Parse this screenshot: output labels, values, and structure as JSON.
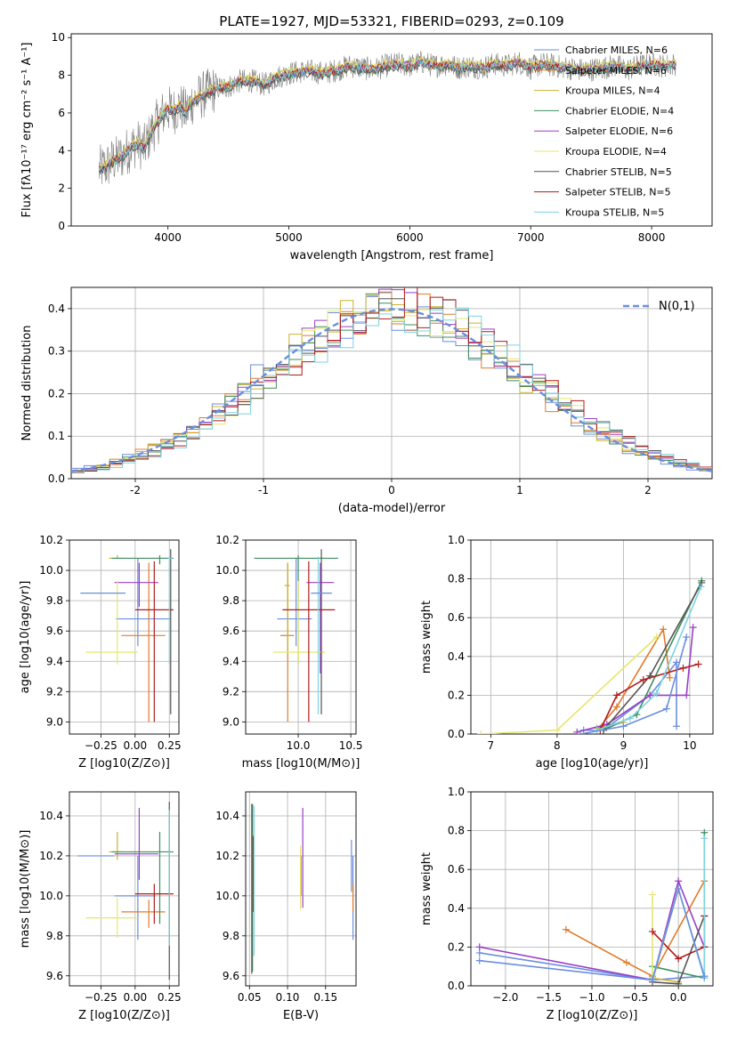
{
  "figure_title": "PLATE=1927, MJD=53321, FIBERID=0293, z=0.109",
  "series_colors": [
    "#6b8ede",
    "#e07b2a",
    "#cbb230",
    "#3f8e5f",
    "#9a3fc8",
    "#e6e66e",
    "#555555",
    "#b01c1c",
    "#7ed3e0"
  ],
  "chart_data": [
    {
      "id": "spectrum",
      "type": "line",
      "title": "PLATE=1927, MJD=53321, FIBERID=0293, z=0.109",
      "xlabel": "wavelength [Angstrom, rest frame]",
      "ylabel": "Flux [fλ10⁻¹⁷ erg cm⁻² s⁻¹ A⁻¹]",
      "xlim": [
        3200,
        8500
      ],
      "ylim": [
        0,
        10.2
      ],
      "xticks": [
        4000,
        5000,
        6000,
        7000,
        8000
      ],
      "yticks": [
        0,
        2,
        4,
        6,
        8,
        10
      ],
      "grid": false,
      "legend_position": "top-right",
      "data_line": {
        "x": [
          3430,
          3500,
          3550,
          3600,
          3650,
          3700,
          3750,
          3800,
          3850,
          3900,
          3950,
          4000,
          4050,
          4100,
          4150,
          4200,
          4300,
          4400,
          4500,
          4600,
          4700,
          4800,
          4900,
          5000,
          5100,
          5200,
          5300,
          5400,
          5500,
          5600,
          5700,
          5800,
          5900,
          6000,
          6100,
          6200,
          6300,
          6400,
          6500,
          6600,
          6700,
          6800,
          6900,
          7000,
          7100,
          7200,
          7300,
          7400,
          7500,
          7600,
          7700,
          7800,
          7900,
          8000,
          8100,
          8200
        ],
        "y": [
          3.0,
          3.2,
          3.5,
          3.6,
          3.9,
          4.2,
          4.4,
          4.1,
          4.8,
          5.4,
          5.9,
          6.2,
          6.1,
          6.4,
          6.0,
          6.6,
          7.0,
          7.3,
          7.4,
          7.7,
          7.7,
          7.5,
          7.9,
          8.1,
          8.2,
          8.2,
          8.1,
          8.3,
          8.5,
          8.4,
          8.3,
          8.5,
          8.6,
          8.5,
          8.7,
          8.5,
          8.6,
          8.4,
          8.5,
          8.4,
          8.6,
          8.5,
          8.7,
          8.4,
          8.6,
          8.5,
          8.4,
          8.3,
          8.3,
          8.4,
          8.5,
          8.3,
          8.5,
          8.6,
          8.5,
          8.6
        ]
      },
      "series": [
        {
          "name": "Chabrier MILES, N_SSP=6",
          "offset": 0.05
        },
        {
          "name": "Salpeter MILES, N_SSP=6",
          "offset": -0.05
        },
        {
          "name": "Kroupa MILES, N_SSP=4",
          "offset": 0.1
        },
        {
          "name": "Chabrier ELODIE, N_SSP=4",
          "offset": -0.1
        },
        {
          "name": "Salpeter ELODIE, N_SSP=6",
          "offset": 0.0
        },
        {
          "name": "Kroupa ELODIE, N_SSP=4",
          "offset": 0.15
        },
        {
          "name": "Chabrier STELIB, N_SSP=5",
          "offset": -0.15
        },
        {
          "name": "Salpeter STELIB, N_SSP=5",
          "offset": 0.02
        },
        {
          "name": "Kroupa STELIB, N_SSP=5",
          "offset": -0.02
        }
      ]
    },
    {
      "id": "residuals",
      "type": "histogram",
      "xlabel": "(data-model)/error",
      "ylabel": "Normed distribution",
      "xlim": [
        -2.5,
        2.5
      ],
      "ylim": [
        0,
        0.45
      ],
      "xticks": [
        -2,
        -1,
        0,
        1,
        2
      ],
      "yticks": [
        0.0,
        0.1,
        0.2,
        0.3,
        0.4
      ],
      "grid": true,
      "legend_position": "top-right",
      "reference_curve": {
        "name": "N(0,1)",
        "mean": 0,
        "sigma": 1
      },
      "bin_width": 0.1
    },
    {
      "id": "age_vs_Z",
      "type": "errorbar",
      "xlabel": "Z [log10(Z/Z⊙)]",
      "ylabel": "age  [log10(age/yr)]",
      "xlim": [
        -0.48,
        0.32
      ],
      "ylim": [
        8.92,
        10.2
      ],
      "xticks": [
        -0.25,
        0.0,
        0.25
      ],
      "xtick_labels": [
        "−0.25",
        "0.00",
        "0.25"
      ],
      "yticks": [
        9.0,
        9.2,
        9.4,
        9.6,
        9.8,
        10.0,
        10.2
      ],
      "grid": true,
      "points": [
        {
          "x": 0.02,
          "xerr": [
            0.16,
            0.24
          ],
          "y": 9.68,
          "yerr": [
            0.18,
            0.4
          ]
        },
        {
          "x": 0.1,
          "xerr": [
            0.2,
            0.12
          ],
          "y": 9.57,
          "yerr": [
            0.57,
            0.48
          ]
        },
        {
          "x": -0.13,
          "xerr": [
            0.06,
            0.05
          ],
          "y": 10.08,
          "yerr": [
            0.0,
            0.02
          ]
        },
        {
          "x": 0.18,
          "xerr": [
            0.35,
            0.1
          ],
          "y": 10.08,
          "yerr": [
            0.04,
            0.02
          ]
        },
        {
          "x": 0.03,
          "xerr": [
            0.18,
            0.14
          ],
          "y": 9.92,
          "yerr": [
            0.16,
            0.13
          ]
        },
        {
          "x": -0.13,
          "xerr": [
            0.23,
            0.15
          ],
          "y": 9.46,
          "yerr": [
            0.08,
            0.47
          ]
        },
        {
          "x": 0.26,
          "xerr": [
            0.01,
            0.01
          ],
          "y": 10.08,
          "yerr": [
            1.03,
            0.06
          ]
        },
        {
          "x": 0.14,
          "xerr": [
            0.14,
            0.14
          ],
          "y": 9.74,
          "yerr": [
            0.74,
            0.32
          ]
        },
        {
          "x": 0.25,
          "xerr": [
            0.01,
            0.02
          ],
          "y": 10.08,
          "yerr": [
            0.7,
            0.01
          ]
        },
        {
          "x": -0.27,
          "xerr": [
            0.13,
            0.2
          ],
          "y": 9.85,
          "yerr": [
            0.0,
            0.0
          ]
        }
      ]
    },
    {
      "id": "age_vs_mass",
      "type": "errorbar",
      "xlabel": "mass [log10(M/M⊙)]",
      "xlim": [
        9.5,
        10.55
      ],
      "ylim": [
        8.92,
        10.2
      ],
      "xticks": [
        10.0,
        10.5
      ],
      "yticks": [
        9.0,
        9.2,
        9.4,
        9.6,
        9.8,
        10.0,
        10.2
      ],
      "grid": true,
      "points": [
        {
          "x": 9.98,
          "xerr": [
            0.18,
            0.15
          ],
          "y": 9.68,
          "yerr": [
            0.18,
            0.4
          ]
        },
        {
          "x": 9.9,
          "xerr": [
            0.07,
            0.06
          ],
          "y": 9.57,
          "yerr": [
            0.57,
            0.48
          ]
        },
        {
          "x": 9.9,
          "xerr": [
            0.03,
            0.02
          ],
          "y": 9.9,
          "yerr": [
            0.45,
            0.15
          ]
        },
        {
          "x": 10.0,
          "xerr": [
            0.42,
            0.38
          ],
          "y": 10.08,
          "yerr": [
            0.7,
            0.02
          ]
        },
        {
          "x": 10.21,
          "xerr": [
            0.13,
            0.13
          ],
          "y": 9.92,
          "yerr": [
            0.6,
            0.13
          ]
        },
        {
          "x": 10.0,
          "xerr": [
            0.24,
            0.26
          ],
          "y": 9.46,
          "yerr": [
            0.08,
            0.47
          ]
        },
        {
          "x": 10.22,
          "xerr": [
            0.0,
            0.0
          ],
          "y": 10.08,
          "yerr": [
            1.03,
            0.06
          ]
        },
        {
          "x": 10.1,
          "xerr": [
            0.25,
            0.25
          ],
          "y": 9.74,
          "yerr": [
            0.74,
            0.32
          ]
        },
        {
          "x": 10.19,
          "xerr": [
            0.0,
            0.0
          ],
          "y": 10.08,
          "yerr": [
            1.03,
            0.01
          ]
        },
        {
          "x": 10.22,
          "xerr": [
            0.1,
            0.1
          ],
          "y": 9.85,
          "yerr": [
            0.0,
            0.0
          ]
        }
      ]
    },
    {
      "id": "weight_vs_age",
      "type": "line",
      "xlabel": "age  [log10(age/yr)]",
      "ylabel": "mass weight",
      "xlim": [
        6.7,
        10.35
      ],
      "ylim": [
        0,
        1.0
      ],
      "xticks": [
        7,
        8,
        9,
        10
      ],
      "yticks": [
        0.0,
        0.2,
        0.4,
        0.6,
        0.8,
        1.0
      ],
      "grid": true,
      "series": [
        {
          "x": [
            8.4,
            8.7,
            9.4,
            9.8,
            9.8
          ],
          "y": [
            0.02,
            0.02,
            0.2,
            0.37,
            0.04
          ]
        },
        {
          "x": [
            8.6,
            8.9,
            9.6,
            9.7
          ],
          "y": [
            0.02,
            0.14,
            0.54,
            0.29
          ]
        },
        {
          "x": [
            8.6,
            9.0
          ],
          "y": [
            0.03,
            0.06
          ]
        },
        {
          "x": [
            8.7,
            9.2,
            10.18
          ],
          "y": [
            0.02,
            0.1,
            0.79
          ]
        },
        {
          "x": [
            8.3,
            8.75,
            9.4,
            9.95,
            10.05
          ],
          "y": [
            0.01,
            0.05,
            0.2,
            0.2,
            0.55
          ]
        },
        {
          "x": [
            6.85,
            8.0,
            9.5
          ],
          "y": [
            0.0,
            0.02,
            0.5
          ]
        },
        {
          "x": [
            8.7,
            9.4,
            10.18
          ],
          "y": [
            0.02,
            0.3,
            0.78
          ]
        },
        {
          "x": [
            8.65,
            8.9,
            9.3,
            9.9,
            10.13
          ],
          "y": [
            0.02,
            0.2,
            0.28,
            0.34,
            0.36
          ]
        },
        {
          "x": [
            8.6,
            9.1,
            9.5,
            10.17
          ],
          "y": [
            0.02,
            0.08,
            0.21,
            0.76
          ]
        },
        {
          "x": [
            8.35,
            9.0,
            9.65,
            9.95
          ],
          "y": [
            0.0,
            0.04,
            0.13,
            0.5
          ]
        }
      ]
    },
    {
      "id": "mass_vs_Z",
      "type": "errorbar",
      "xlabel": "Z [log10(Z/Z⊙)]",
      "ylabel": "mass [log10(M/M⊙)]",
      "xlim": [
        -0.48,
        0.32
      ],
      "ylim": [
        9.55,
        10.52
      ],
      "xticks": [
        -0.25,
        0.0,
        0.25
      ],
      "xtick_labels": [
        "−0.25",
        "0.00",
        "0.25"
      ],
      "yticks": [
        9.6,
        9.8,
        10.0,
        10.2,
        10.4
      ],
      "grid": true,
      "points": [
        {
          "x": 0.02,
          "xerr": [
            0.17,
            0.13
          ],
          "y": 10.0,
          "yerr": [
            0.22,
            0.2
          ]
        },
        {
          "x": 0.1,
          "xerr": [
            0.2,
            0.12
          ],
          "y": 9.92,
          "yerr": [
            0.08,
            0.06
          ]
        },
        {
          "x": -0.13,
          "xerr": [
            0.06,
            0.05
          ],
          "y": 10.22,
          "yerr": [
            0.04,
            0.1
          ]
        },
        {
          "x": 0.18,
          "xerr": [
            0.35,
            0.1
          ],
          "y": 10.22,
          "yerr": [
            0.36,
            0.1
          ]
        },
        {
          "x": 0.03,
          "xerr": [
            0.18,
            0.14
          ],
          "y": 10.21,
          "yerr": [
            0.13,
            0.23
          ]
        },
        {
          "x": -0.13,
          "xerr": [
            0.23,
            0.15
          ],
          "y": 9.89,
          "yerr": [
            0.1,
            0.1
          ]
        },
        {
          "x": 0.25,
          "xerr": [
            0.0,
            0.0
          ],
          "y": 10.2,
          "yerr": [
            0.62,
            0.27
          ]
        },
        {
          "x": 0.14,
          "xerr": [
            0.14,
            0.14
          ],
          "y": 10.01,
          "yerr": [
            0.15,
            0.05
          ]
        },
        {
          "x": 0.25,
          "xerr": [
            0.0,
            0.0
          ],
          "y": 10.2,
          "yerr": [
            0.45,
            0.23
          ]
        },
        {
          "x": -0.25,
          "xerr": [
            0.17,
            0.1
          ],
          "y": 10.2,
          "yerr": [
            0.0,
            0.0
          ]
        }
      ]
    },
    {
      "id": "mass_vs_EBV",
      "type": "errorbar",
      "xlabel": "E(B-V)",
      "xlim": [
        0.045,
        0.19
      ],
      "ylim": [
        9.55,
        10.52
      ],
      "xticks": [
        0.05,
        0.1,
        0.15
      ],
      "xtick_labels": [
        "0.05",
        "0.10",
        "0.15"
      ],
      "yticks": [
        9.6,
        9.8,
        10.0,
        10.2,
        10.4
      ],
      "grid": true,
      "points": [
        {
          "x": 0.186,
          "y": 10.0,
          "yerr": [
            0.22,
            0.2
          ]
        },
        {
          "x": 0.186,
          "y": 9.98,
          "yerr": [
            0.06,
            0.08
          ]
        },
        {
          "x": 0.118,
          "y": 10.1,
          "yerr": [
            0.1,
            0.1
          ]
        },
        {
          "x": 0.054,
          "y": 10.22,
          "yerr": [
            0.6,
            0.24
          ]
        },
        {
          "x": 0.12,
          "y": 10.2,
          "yerr": [
            0.26,
            0.24
          ]
        },
        {
          "x": 0.117,
          "y": 10.1,
          "yerr": [
            0.17,
            0.15
          ]
        },
        {
          "x": 0.053,
          "y": 10.1,
          "yerr": [
            0.49,
            0.36
          ]
        },
        {
          "x": 0.055,
          "y": 10.1,
          "yerr": [
            0.18,
            0.2
          ]
        },
        {
          "x": 0.056,
          "y": 10.15,
          "yerr": [
            0.45,
            0.3
          ]
        },
        {
          "x": 0.184,
          "y": 10.15,
          "yerr": [
            0.13,
            0.13
          ]
        }
      ]
    },
    {
      "id": "weight_vs_Z",
      "type": "line",
      "xlabel": "Z [log10(Z/Z⊙)]",
      "ylabel": "mass weight",
      "xlim": [
        -2.4,
        0.4
      ],
      "ylim": [
        0,
        1.0
      ],
      "xticks": [
        -2.0,
        -1.5,
        -1.0,
        -0.5,
        0.0
      ],
      "xtick_labels": [
        "−2.0",
        "−1.5",
        "−1.0",
        "−0.5",
        "0.0"
      ],
      "yticks": [
        0.0,
        0.2,
        0.4,
        0.6,
        0.8,
        1.0
      ],
      "grid": true,
      "series": [
        {
          "x": [
            -2.3,
            -0.3,
            0.0,
            0.3
          ],
          "y": [
            0.17,
            0.03,
            0.04,
            0.05
          ]
        },
        {
          "x": [
            -1.3,
            -0.6,
            -0.3,
            0.3
          ],
          "y": [
            0.29,
            0.12,
            0.05,
            0.54
          ]
        },
        {
          "x": [
            -0.3,
            0.0
          ],
          "y": [
            0.04,
            0.02
          ]
        },
        {
          "x": [
            -0.3,
            0.3,
            0.3
          ],
          "y": [
            0.1,
            0.04,
            0.79
          ]
        },
        {
          "x": [
            -2.3,
            -0.3,
            0.0,
            0.3
          ],
          "y": [
            0.2,
            0.03,
            0.54,
            0.2
          ]
        },
        {
          "x": [
            -0.3,
            -0.3,
            0.0
          ],
          "y": [
            0.47,
            0.02,
            0.5
          ]
        },
        {
          "x": [
            -0.3,
            0.0,
            0.3
          ],
          "y": [
            0.02,
            0.01,
            0.36
          ]
        },
        {
          "x": [
            -0.3,
            0.0,
            0.3,
            0.3
          ],
          "y": [
            0.28,
            0.14,
            0.2,
            0.36
          ]
        },
        {
          "x": [
            -0.3,
            0.0,
            0.3,
            0.3
          ],
          "y": [
            0.04,
            0.5,
            0.04,
            0.76
          ]
        },
        {
          "x": [
            -2.3,
            -0.3,
            0.0,
            0.3
          ],
          "y": [
            0.13,
            0.03,
            0.5,
            0.05
          ]
        }
      ]
    }
  ]
}
